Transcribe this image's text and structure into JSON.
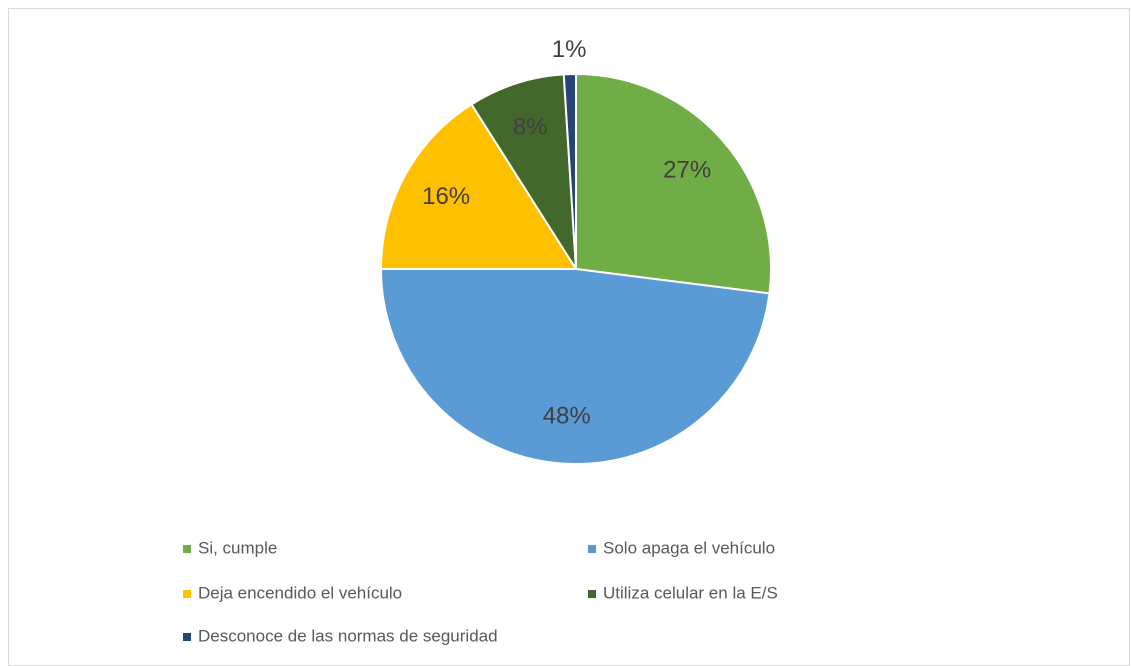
{
  "chart_data": {
    "type": "pie",
    "categories": [
      "Si, cumple",
      "Solo apaga el vehículo",
      "Deja encendido el vehículo",
      "Utiliza celular en la E/S",
      "Desconoce de las normas de seguridad"
    ],
    "values": [
      27,
      48,
      16,
      8,
      1
    ],
    "value_labels": [
      "27%",
      "48%",
      "16%",
      "8%",
      "1%"
    ],
    "colors": [
      "#70ad47",
      "#5b9bd5",
      "#ffc000",
      "#43682b",
      "#264478"
    ],
    "legend": "bottom"
  }
}
